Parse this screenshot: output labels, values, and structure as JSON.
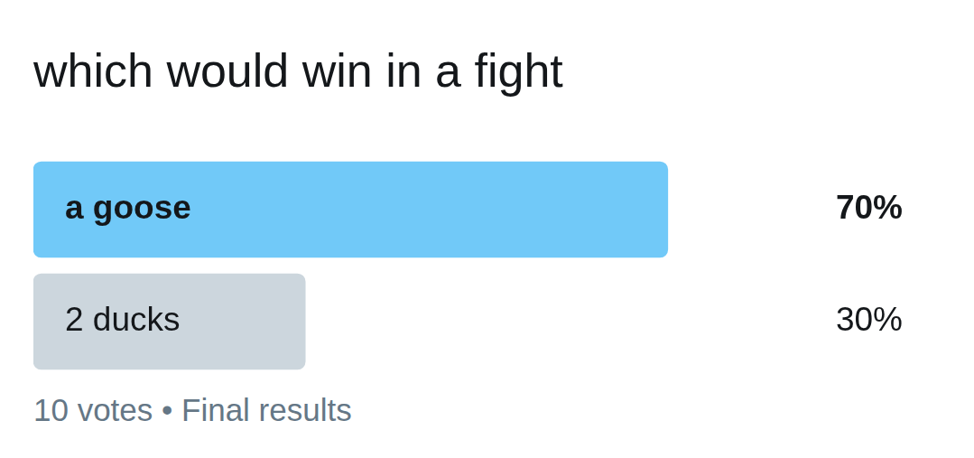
{
  "chart_data": {
    "type": "bar",
    "orientation": "horizontal",
    "title": "which would win in a fight",
    "categories": [
      "a goose",
      "2 ducks"
    ],
    "values": [
      70,
      30
    ],
    "value_labels": [
      "70%",
      "30%"
    ],
    "colors": [
      "#71c9f8",
      "#ccd6dd"
    ],
    "xlim": [
      0,
      100
    ],
    "data_labels": true,
    "tick_labels": false,
    "grid": false,
    "annotations": [
      "10 votes • Final results"
    ]
  }
}
